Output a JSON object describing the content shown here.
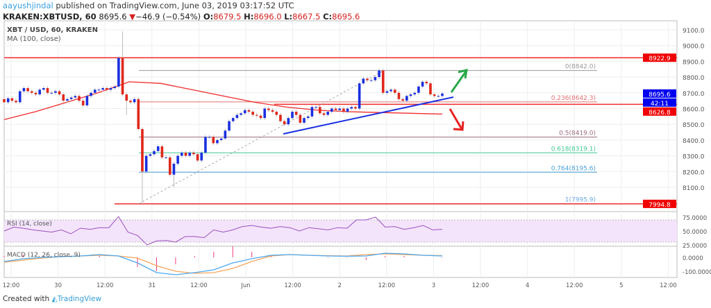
{
  "header": {
    "author": "aayushjindal",
    "published": "published on TradingView.com, June 03, 2019 03:17:52 UTC",
    "symbol": "KRAKEN:XBTUSD, 60",
    "last": "8695.6",
    "change": "−46.9 (−0.54%)",
    "o_label": "O:",
    "o": "8679.5",
    "h_label": "H:",
    "h": "8696.0",
    "l_label": "L:",
    "l": "8667.5",
    "c_label": "C:",
    "c": "8695.6"
  },
  "footer": {
    "created_with": "Created with",
    "brand": "TradingView"
  },
  "colors": {
    "up": "#1a2fe0",
    "down": "#e0271a",
    "ma": "#f02a2a",
    "rsi": "#9c4fc0",
    "rsi_band": "#f3e4fb",
    "macd": "#4aa8f0",
    "signal": "#f7a55a",
    "hist": "#f03a7a",
    "resistance": "#f02a2a",
    "trendline": "#1a2fe0"
  },
  "chart_data": {
    "type": "candlestick",
    "title": "XBT / USD, 60, KRAKEN",
    "indicator_ma": "MA (100, close)",
    "y_ticks": [
      "9100.0",
      "9000.0",
      "8900.0",
      "8800.0",
      "8700.0",
      "8600.0",
      "8500.0",
      "8400.0",
      "8300.0",
      "8200.0",
      "8100.0"
    ],
    "ylim": [
      7950,
      9130
    ],
    "x_ticks": [
      "12:00",
      "30",
      "12:00",
      "31",
      "12:00",
      "Jun",
      "12:00",
      "2",
      "12:00",
      "3",
      "12:00",
      "4",
      "12:00",
      "5",
      "12:00"
    ],
    "closes": [
      8640,
      8665,
      8650,
      8640,
      8710,
      8730,
      8710,
      8700,
      8690,
      8720,
      8730,
      8700,
      8700,
      8710,
      8690,
      8650,
      8660,
      8670,
      8680,
      8650,
      8620,
      8680,
      8700,
      8720,
      8720,
      8730,
      8720,
      8730,
      8740,
      8922,
      8690,
      8650,
      8640,
      8660,
      8470,
      8200,
      8300,
      8310,
      8330,
      8360,
      8290,
      8290,
      8180,
      8250,
      8300,
      8320,
      8300,
      8320,
      8310,
      8270,
      8320,
      8420,
      8420,
      8380,
      8400,
      8410,
      8460,
      8520,
      8540,
      8560,
      8570,
      8590,
      8580,
      8560,
      8555,
      8540,
      8600,
      8590,
      8580,
      8560,
      8520,
      8500,
      8540,
      8580,
      8560,
      8510,
      8540,
      8550,
      8610,
      8610,
      8570,
      8560,
      8580,
      8600,
      8590,
      8600,
      8580,
      8600,
      8610,
      8600,
      8760,
      8790,
      8780,
      8780,
      8800,
      8842,
      8700,
      8710,
      8720,
      8700,
      8660,
      8650,
      8680,
      8690,
      8700,
      8740,
      8770,
      8760,
      8690,
      8680,
      8680,
      8695.6
    ],
    "first_open": 8660,
    "ma100": [
      8530,
      8580,
      8640,
      8700,
      8770,
      8760,
      8720,
      8680,
      8640,
      8610,
      8590,
      8580,
      8575,
      8570,
      8565
    ],
    "price_labels": [
      {
        "value": "8922.9",
        "color": "#f00000"
      },
      {
        "value": "8695.6",
        "color": "#0000f0"
      },
      {
        "value": "42:11",
        "color": "#0000f0"
      },
      {
        "value": "8626.8",
        "color": "#f00000"
      },
      {
        "value": "7994.8",
        "color": "#f00000"
      }
    ],
    "horizontal_lines": [
      {
        "price": 8922.9
      },
      {
        "price": 8626.8
      },
      {
        "price": 7994.8
      }
    ],
    "fibonacci": [
      {
        "label": "0(8842.0)",
        "price": 8842.0,
        "color": "#999999"
      },
      {
        "label": "0.236(8642.3)",
        "price": 8642.3,
        "color": "#e07070"
      },
      {
        "label": "0.5(8419.0)",
        "price": 8419.0,
        "color": "#9a6a80"
      },
      {
        "label": "0.618(8319.1)",
        "price": 8319.1,
        "color": "#3cc890"
      },
      {
        "label": "0.764(8195.6)",
        "price": 8195.6,
        "color": "#4aa0d8"
      },
      {
        "label": "1(7995.9)",
        "price": 7995.9,
        "color": "#6aa8e0"
      }
    ],
    "rsi": {
      "label": "RSI (14, close)",
      "ticks": [
        "75.0000",
        "50.0000",
        "25.0000"
      ],
      "band": [
        30,
        70
      ],
      "values": [
        50,
        57,
        55,
        52,
        50,
        48,
        52,
        45,
        55,
        53,
        56,
        56,
        76,
        48,
        42,
        25,
        32,
        33,
        30,
        40,
        40,
        38,
        52,
        48,
        52,
        58,
        60,
        57,
        55,
        58,
        56,
        50,
        56,
        54,
        52,
        56,
        55,
        70,
        70,
        75,
        57,
        58,
        53,
        56,
        60,
        52,
        53
      ]
    },
    "macd": {
      "label": "MACD (12, 26, close, 9)",
      "ticks": [
        "0.0000",
        "-100.0000"
      ],
      "macd": [
        -30,
        -10,
        0,
        5,
        10,
        20,
        10,
        -40,
        -110,
        -125,
        -110,
        -90,
        -40,
        -10,
        15,
        20,
        15,
        10,
        8,
        10,
        30,
        25,
        15,
        10
      ],
      "signal": [
        -35,
        -20,
        -5,
        5,
        10,
        15,
        10,
        -5,
        -60,
        -100,
        -115,
        -110,
        -80,
        -30,
        10,
        20,
        15,
        12,
        10,
        20,
        25,
        20,
        15,
        12
      ]
    }
  }
}
